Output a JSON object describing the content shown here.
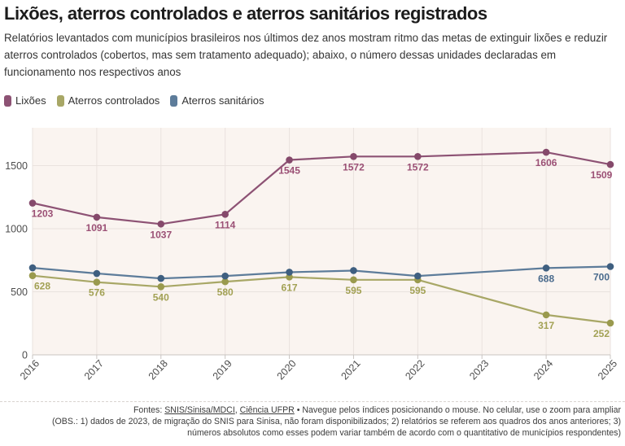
{
  "header": {
    "title": "Lixões, aterros controlados e aterros sanitários registrados",
    "subtitle": "Relatórios levantados com municípios brasileiros nos últimos dez anos mostram ritmo das metas de extinguir lixões e reduzir aterros controlados (cobertos, mas sem tratamento adequado); abaixo, o número dessas unidades declaradas em funcionamento nos respectivos anos"
  },
  "footer": {
    "sources_prefix": "Fontes: ",
    "source_link_1": "SNIS/Sinisa/MDCI",
    "source_sep": ", ",
    "source_link_2": "Ciência UFPR",
    "line1_rest": " • Navegue pelos índices posicionando o mouse. No celular, use o zoom para ampliar",
    "line2": "(OBS.: 1) dados de 2023, de migração do SNIS para Sinisa, não foram disponibilizados; 2) relatórios se referem aos quadros dos anos anteriores; 3)",
    "line3": "números absolutos como esses podem variar também de acordo com o quantitativo de municípios respondentes)"
  },
  "chart_data": {
    "type": "line",
    "x": [
      2016,
      2017,
      2018,
      2019,
      2020,
      2021,
      2022,
      2023,
      2024,
      2025
    ],
    "series": [
      {
        "name": "Lixões",
        "line_color": "#8d5274",
        "dot_color": "#85496b",
        "label_color": "#9b5075",
        "values": [
          1203,
          1091,
          1037,
          1114,
          1545,
          1572,
          1572,
          null,
          1606,
          1509
        ],
        "labels": [
          1203,
          1091,
          1037,
          1114,
          1545,
          1572,
          1572,
          null,
          1606,
          1509
        ]
      },
      {
        "name": "Aterros controlados",
        "line_color": "#a8a766",
        "dot_color": "#9a9a4e",
        "label_color": "#a2a154",
        "values": [
          628,
          576,
          540,
          580,
          617,
          595,
          595,
          null,
          317,
          252
        ],
        "labels": [
          628,
          576,
          540,
          580,
          617,
          595,
          595,
          null,
          317,
          252
        ]
      },
      {
        "name": "Aterros sanitários",
        "line_color": "#5d7c9a",
        "dot_color": "#3f5f80",
        "label_color": "#4a6b8d",
        "values": [
          690,
          645,
          606,
          625,
          655,
          668,
          625,
          null,
          688,
          700
        ],
        "labels": [
          null,
          null,
          null,
          null,
          null,
          null,
          null,
          null,
          688,
          700
        ]
      }
    ],
    "ylim": [
      0,
      1800
    ],
    "yticks": [
      0,
      500,
      1000,
      1500
    ],
    "grid": true,
    "legend_position": "top",
    "plot_bg": "#faf4f0",
    "grid_color": "#e9e2de",
    "axis_color": "#c9c4c1",
    "tick_label_color": "#4d4d4d",
    "note": "no data points plotted for 2023"
  }
}
